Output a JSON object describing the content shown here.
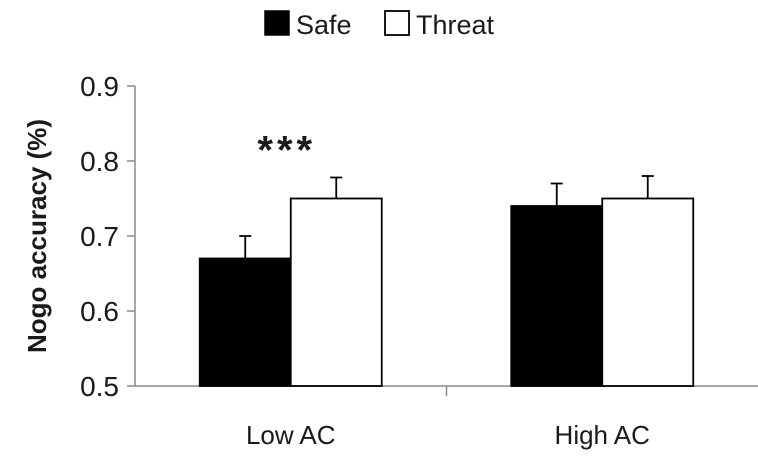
{
  "chart_data": {
    "type": "bar",
    "title": "",
    "xlabel": "",
    "ylabel": "Nogo accuracy (%)",
    "ylim": [
      0.5,
      0.9
    ],
    "yticks": [
      "0.5",
      "0.6",
      "0.7",
      "0.8",
      "0.9"
    ],
    "categories": [
      "Low AC",
      "High AC"
    ],
    "series": [
      {
        "name": "Safe",
        "values": [
          0.67,
          0.74
        ],
        "errors": [
          0.03,
          0.03
        ],
        "color": "#000000"
      },
      {
        "name": "Threat",
        "values": [
          0.75,
          0.75
        ],
        "errors": [
          0.028,
          0.03
        ],
        "color": "#ffffff"
      }
    ],
    "legend_position": "top",
    "grid": false,
    "annotations": [
      {
        "text": "***",
        "category": "Low AC"
      }
    ]
  }
}
